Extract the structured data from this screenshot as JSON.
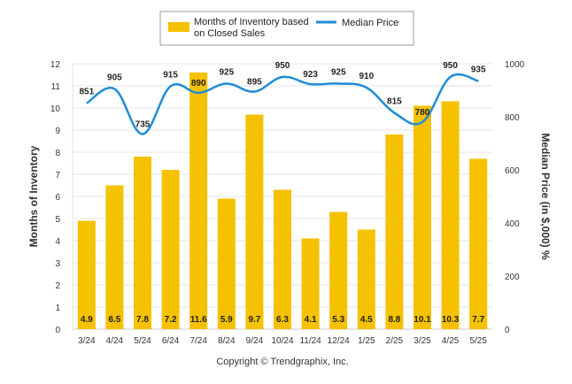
{
  "copyright": "Copyright © Trendgraphix, Inc.",
  "chart_data": {
    "type": "bar",
    "categories": [
      "3/24",
      "4/24",
      "5/24",
      "6/24",
      "7/24",
      "8/24",
      "9/24",
      "10/24",
      "11/24",
      "12/24",
      "1/25",
      "2/25",
      "3/25",
      "4/25",
      "5/25"
    ],
    "series": [
      {
        "name": "Months of Inventory based on Closed Sales",
        "legend_lines": [
          "Months of Inventory based",
          "on Closed Sales"
        ],
        "type": "bar",
        "axis": "left",
        "color": "#F5C100",
        "values": [
          4.9,
          6.5,
          7.8,
          7.2,
          11.6,
          5.9,
          9.7,
          6.3,
          4.1,
          5.3,
          4.5,
          8.8,
          10.1,
          10.3,
          7.7
        ],
        "labels": [
          "4.9",
          "6.5",
          "7.8",
          "7.2",
          "11.6",
          "5.9",
          "9.7",
          "6.3",
          "4.1",
          "5.3",
          "4.5",
          "8.8",
          "10.1",
          "10.3",
          "7.7"
        ]
      },
      {
        "name": "Median Price",
        "type": "line",
        "axis": "right",
        "color": "#1F8DD6",
        "values": [
          851,
          905,
          735,
          915,
          890,
          925,
          895,
          950,
          923,
          925,
          910,
          815,
          780,
          950,
          935
        ],
        "labels": [
          "851",
          "905",
          "735",
          "915",
          "890",
          "925",
          "895",
          "950",
          "923",
          "925",
          "910",
          "815",
          "780",
          "950",
          "935"
        ]
      }
    ],
    "ylabel": "Months of Inventory",
    "y2label": "Median Price (in $,000) %",
    "ylim": [
      0,
      12
    ],
    "y2lim": [
      0,
      1000
    ],
    "yticks": [
      "0",
      "1",
      "2",
      "3",
      "4",
      "5",
      "6",
      "7",
      "8",
      "9",
      "10",
      "11",
      "12"
    ],
    "y2ticks": [
      "0",
      "200",
      "400",
      "600",
      "800",
      "1000"
    ],
    "grid": true,
    "legend_position": "top"
  }
}
